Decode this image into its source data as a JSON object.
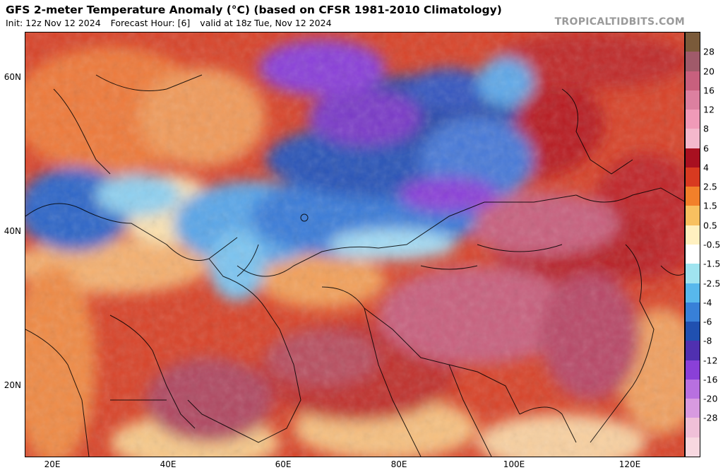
{
  "header": {
    "title": "GFS 2-meter Temperature Anomaly (°C) (based on CFSR 1981-2010 Climatology)",
    "init": "Init: 12z Nov 12 2024",
    "forecast_hour": "Forecast Hour: [6]",
    "valid": "valid at 18z Tue, Nov 12 2024",
    "credit": "TROPICALTIDBITS.COM"
  },
  "axes": {
    "lat_labels": [
      "60N",
      "40N",
      "20N"
    ],
    "lon_labels": [
      "20E",
      "40E",
      "60E",
      "80E",
      "100E",
      "120E"
    ]
  },
  "colorbar": {
    "labels": [
      "28",
      "20",
      "16",
      "12",
      "8",
      "6",
      "4",
      "2.5",
      "1.5",
      "0.5",
      "-0.5",
      "-1.5",
      "-2.5",
      "-4",
      "-6",
      "-8",
      "-12",
      "-16",
      "-20",
      "-28"
    ],
    "colors": [
      "#7a5a3a",
      "#a05a6a",
      "#c8607e",
      "#dc80a0",
      "#f09ab8",
      "#f4b8cc",
      "#a81020",
      "#d83a20",
      "#f2802a",
      "#f8c060",
      "#fff0c0",
      "#ffffff",
      "#a0e4f0",
      "#58b8ec",
      "#3880d8",
      "#2050b0",
      "#5030b0",
      "#8a40d8",
      "#b870e0",
      "#d89ae0",
      "#f0c0d8",
      "#f8d8e0"
    ]
  }
}
